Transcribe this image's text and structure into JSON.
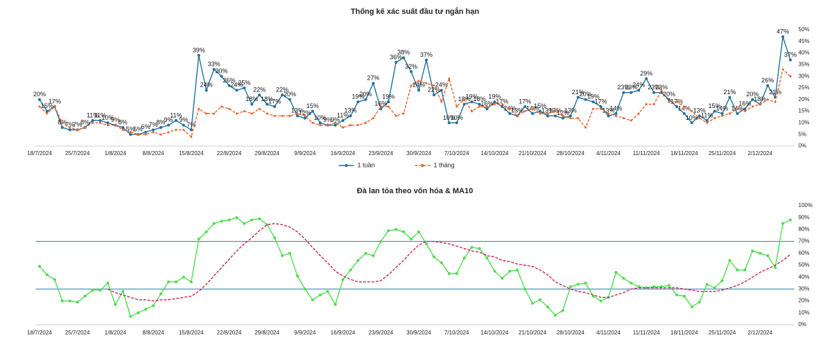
{
  "chart_data": [
    {
      "type": "line",
      "title": "Thống kê xác suất đầu tư ngắn hạn",
      "categories": [
        "18/7/2024",
        null,
        null,
        null,
        null,
        "25/7/2024",
        null,
        null,
        null,
        null,
        "1/8/2024",
        null,
        null,
        null,
        null,
        "8/8/2024",
        null,
        null,
        null,
        null,
        "15/8/2024",
        null,
        null,
        null,
        null,
        "22/8/2024",
        null,
        null,
        null,
        null,
        "29/8/2024",
        null,
        null,
        null,
        null,
        "9/9/2024",
        null,
        null,
        null,
        null,
        "16/9/2024",
        null,
        null,
        null,
        null,
        "23/9/2024",
        null,
        null,
        null,
        null,
        "30/9/2024",
        null,
        null,
        null,
        null,
        "7/10/2024",
        null,
        null,
        null,
        null,
        "14/10/2024",
        null,
        null,
        null,
        null,
        "21/10/2024",
        null,
        null,
        null,
        null,
        "28/10/2024",
        null,
        null,
        null,
        null,
        "4/11/2024",
        null,
        null,
        null,
        null,
        "11/11/2024",
        null,
        null,
        null,
        null,
        "18/11/2024",
        null,
        null,
        null,
        null,
        "25/11/2024",
        null,
        null,
        null,
        null,
        "2/12/2024",
        null,
        null,
        null,
        null
      ],
      "series": [
        {
          "name": "1 tuần",
          "color": "#1f6f9c",
          "dash": false,
          "marker": true,
          "values": [
            20,
            15,
            17,
            8,
            7,
            7,
            8,
            11,
            11,
            10,
            9,
            8,
            5,
            5,
            6,
            7,
            8,
            9,
            11,
            9,
            7,
            39,
            24,
            33,
            30,
            26,
            24,
            25,
            18,
            22,
            18,
            17,
            22,
            20,
            13,
            12,
            15,
            10,
            9,
            9,
            11,
            13,
            19,
            20,
            27,
            16,
            19,
            36,
            38,
            32,
            24,
            37,
            22,
            24,
            10,
            10,
            18,
            19,
            18,
            16,
            19,
            17,
            14,
            13,
            17,
            14,
            15,
            13,
            13,
            12,
            13,
            21,
            20,
            19,
            17,
            13,
            14,
            23,
            23,
            24,
            29,
            23,
            23,
            20,
            17,
            14,
            10,
            13,
            11,
            15,
            14,
            21,
            14,
            16,
            20,
            18,
            26,
            21,
            47,
            37
          ],
          "value_labels": [
            "20%",
            "15%",
            "17%",
            "8%",
            "7%",
            "7%",
            "8%",
            "11%",
            "11%",
            "10%",
            "9%",
            "8%",
            "5%",
            "5%",
            "6%",
            "7%",
            "8%",
            "9%",
            "11%",
            "9%",
            "7%",
            "39%",
            "24%",
            "33%",
            "30%",
            "26%",
            "24%",
            "25%",
            "18%",
            "22%",
            "18%",
            "17%",
            "22%",
            "20%",
            "13%",
            "12%",
            "15%",
            "10%",
            "9%",
            "9%",
            "11%",
            "13%",
            "19%",
            "20%",
            "27%",
            "16%",
            "19%",
            "36%",
            "38%",
            "32%",
            "24%",
            "37%",
            "22%",
            "24%",
            "10%",
            "10%",
            "18%",
            "19%",
            "18%",
            "16%",
            "19%",
            "17%",
            "14%",
            "13%",
            "17%",
            "14%",
            "15%",
            "13%",
            "13%",
            "12%",
            "13%",
            "21%",
            "20%",
            "19%",
            "17%",
            "13%",
            "14%",
            "23%",
            "23%",
            "24%",
            "29%",
            "23%",
            "23%",
            "20%",
            "17%",
            "14%",
            "10%",
            "13%",
            "11%",
            "15%",
            "14%",
            "21%",
            "14%",
            "16%",
            "20%",
            "18%",
            "26%",
            "21%",
            "47%",
            "37%"
          ]
        },
        {
          "name": "1 tháng",
          "color": "#e8622a",
          "dash": true,
          "marker": true,
          "values": [
            17,
            14,
            17,
            10,
            8,
            7,
            8,
            10,
            10,
            9,
            9,
            7,
            6,
            5,
            5,
            6,
            5,
            6,
            7,
            7,
            4,
            16,
            14,
            14,
            17,
            16,
            14,
            15,
            14,
            16,
            14,
            13,
            13,
            13,
            14,
            13,
            10,
            9,
            9,
            10,
            8,
            9,
            9,
            10,
            12,
            17,
            17,
            13,
            14,
            26,
            28,
            27,
            26,
            19,
            29,
            17,
            20,
            15,
            17,
            17,
            18,
            18,
            16,
            13,
            15,
            16,
            14,
            14,
            15,
            13,
            12,
            12,
            8,
            16,
            16,
            14,
            13,
            12,
            11,
            14,
            18,
            18,
            24,
            19,
            19,
            17,
            15,
            12,
            10,
            12,
            13,
            14,
            16,
            15,
            17,
            18,
            20,
            19,
            33,
            30
          ]
        }
      ],
      "ylim": [
        0,
        50
      ],
      "yticks": [
        {
          "value": 0,
          "label": "0%"
        },
        {
          "value": 5,
          "label": "5%"
        },
        {
          "value": 10,
          "label": "10%"
        },
        {
          "value": 15,
          "label": "15%"
        },
        {
          "value": 20,
          "label": "20%"
        },
        {
          "value": 25,
          "label": "25%"
        },
        {
          "value": 30,
          "label": "30%"
        },
        {
          "value": 35,
          "label": "35%"
        },
        {
          "value": 40,
          "label": "40%"
        },
        {
          "value": 45,
          "label": "45%"
        },
        {
          "value": 50,
          "label": "50%"
        }
      ],
      "legend": "bottom"
    },
    {
      "type": "line",
      "title": "Đà lan tỏa theo vốn hóa & MA10",
      "categories": [
        "18/7/2024",
        null,
        null,
        null,
        null,
        "25/7/2024",
        null,
        null,
        null,
        null,
        "1/8/2024",
        null,
        null,
        null,
        null,
        "8/8/2024",
        null,
        null,
        null,
        null,
        "15/8/2024",
        null,
        null,
        null,
        null,
        "22/8/2024",
        null,
        null,
        null,
        null,
        "29/8/2024",
        null,
        null,
        null,
        null,
        "9/9/2024",
        null,
        null,
        null,
        null,
        "16/9/2024",
        null,
        null,
        null,
        null,
        "23/9/2024",
        null,
        null,
        null,
        null,
        "30/9/2024",
        null,
        null,
        null,
        null,
        "7/10/2024",
        null,
        null,
        null,
        null,
        "14/10/2024",
        null,
        null,
        null,
        null,
        "21/10/2024",
        null,
        null,
        null,
        null,
        "28/10/2024",
        null,
        null,
        null,
        null,
        "4/11/2024",
        null,
        null,
        null,
        null,
        "11/11/2024",
        null,
        null,
        null,
        null,
        "18/11/2024",
        null,
        null,
        null,
        null,
        "25/11/2024",
        null,
        null,
        null,
        null,
        "2/12/2024",
        null,
        null,
        null,
        null
      ],
      "series": [
        {
          "color": "#4fdc4f",
          "dash": false,
          "marker": true,
          "values": [
            49,
            42,
            38,
            20,
            20,
            19,
            24,
            29,
            29,
            35,
            17,
            28,
            7,
            10,
            13,
            16,
            26,
            36,
            36,
            40,
            36,
            72,
            78,
            85,
            87,
            88,
            90,
            85,
            88,
            89,
            84,
            73,
            58,
            60,
            41,
            30,
            21,
            25,
            28,
            17,
            38,
            46,
            54,
            60,
            58,
            70,
            79,
            80,
            78,
            72,
            78,
            68,
            57,
            52,
            43,
            43,
            56,
            65,
            64,
            56,
            45,
            39,
            45,
            46,
            30,
            18,
            21,
            15,
            8,
            12,
            32,
            34,
            35,
            24,
            20,
            23,
            44,
            39,
            35,
            32,
            31,
            32,
            32,
            33,
            25,
            24,
            15,
            19,
            34,
            31,
            37,
            54,
            46,
            46,
            62,
            60,
            58,
            48,
            85,
            88
          ]
        },
        {
          "color": "#c2264e",
          "dash": true,
          "marker": false,
          "values": [
            null,
            null,
            null,
            null,
            null,
            null,
            null,
            null,
            null,
            30,
            27,
            25,
            23,
            21,
            21,
            20,
            21,
            21,
            22,
            23,
            24,
            28,
            34,
            41,
            48,
            55,
            62,
            68,
            73,
            79,
            84,
            85,
            84,
            82,
            78,
            72,
            65,
            58,
            52,
            45,
            41,
            38,
            36,
            36,
            36,
            37,
            42,
            48,
            54,
            61,
            67,
            70,
            70,
            69,
            68,
            66,
            64,
            62,
            61,
            58,
            57,
            54,
            53,
            51,
            50,
            49,
            46,
            42,
            36,
            33,
            30,
            28,
            27,
            25,
            23,
            23,
            25,
            27,
            30,
            31,
            31,
            31,
            31,
            31,
            31,
            30,
            29,
            28,
            28,
            28,
            29,
            31,
            33,
            36,
            40,
            44,
            47,
            50,
            54,
            59
          ]
        }
      ],
      "hlines": [
        70,
        30
      ],
      "hline_color": "#2a7aa8",
      "ylim": [
        0,
        100
      ],
      "yticks": [
        {
          "value": 0,
          "label": "0%"
        },
        {
          "value": 10,
          "label": "10%"
        },
        {
          "value": 20,
          "label": "20%"
        },
        {
          "value": 30,
          "label": "30%"
        },
        {
          "value": 40,
          "label": "40%"
        },
        {
          "value": 50,
          "label": "50%"
        },
        {
          "value": 60,
          "label": "60%"
        },
        {
          "value": 70,
          "label": "70%"
        },
        {
          "value": 80,
          "label": "80%"
        },
        {
          "value": 90,
          "label": "90%"
        },
        {
          "value": 100,
          "label": "100%"
        }
      ]
    }
  ]
}
